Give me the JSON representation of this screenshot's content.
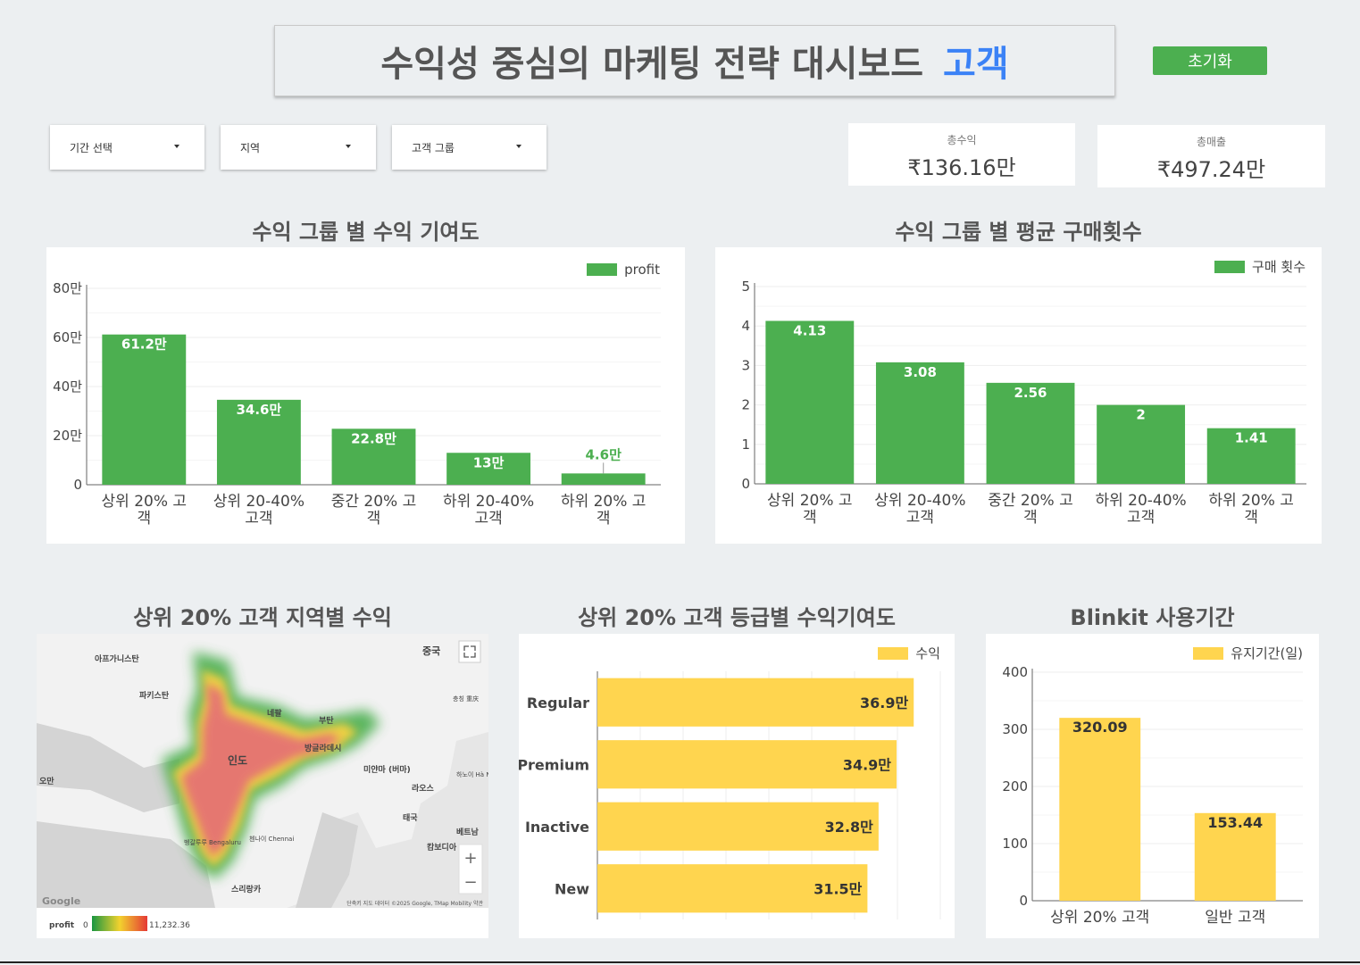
{
  "header": {
    "title": "수익성 중심의 마케팅 전략 대시보드",
    "title_accent": "고객",
    "reset_label": "초기화"
  },
  "filters": {
    "period": "기간 선택",
    "region": "지역",
    "customer_group": "고객 그룹"
  },
  "kpis": {
    "profit_label": "총수익",
    "profit_value": "₹136.16만",
    "sales_label": "총매출",
    "sales_value": "₹497.24만"
  },
  "colors": {
    "green": "#4caf50",
    "yellow": "#ffd54f",
    "accent": "#3b82f6"
  },
  "charts": {
    "profit_contrib": {
      "title": "수익 그룹 별 수익 기여도",
      "legend": "profit",
      "y_ticks": [
        "0",
        "20만",
        "40만",
        "60만",
        "80만"
      ],
      "categories": [
        [
          "상위 20% 고",
          "객"
        ],
        [
          "상위 20-40%",
          "고객"
        ],
        [
          "중간 20% 고",
          "객"
        ],
        [
          "하위 20-40%",
          "고객"
        ],
        [
          "하위 20% 고",
          "객"
        ]
      ],
      "labels": [
        "61.2만",
        "34.6만",
        "22.8만",
        "13만",
        "4.6만"
      ]
    },
    "avg_purchases": {
      "title": "수익 그룹 별 평균 구매횟수",
      "legend": "구매 횟수",
      "y_ticks": [
        "0",
        "1",
        "2",
        "3",
        "4",
        "5"
      ],
      "categories": [
        [
          "상위 20% 고",
          "객"
        ],
        [
          "상위 20-40%",
          "고객"
        ],
        [
          "중간 20% 고",
          "객"
        ],
        [
          "하위 20-40%",
          "고객"
        ],
        [
          "하위 20% 고",
          "객"
        ]
      ],
      "labels": [
        "4.13",
        "3.08",
        "2.56",
        "2",
        "1.41"
      ]
    },
    "grade_contrib": {
      "title": "상위 20% 고객 등급별 수익기여도",
      "legend": "수익",
      "categories": [
        "Regular",
        "Premium",
        "Inactive",
        "New"
      ],
      "labels": [
        "36.9만",
        "34.9만",
        "32.8만",
        "31.5만"
      ]
    },
    "usage_period": {
      "title": "Blinkit 사용기간",
      "legend": "유지기간(일)",
      "y_ticks": [
        "0",
        "100",
        "200",
        "300",
        "400"
      ],
      "categories": [
        "상위 20% 고객",
        "일반 고객"
      ],
      "labels": [
        "320.09",
        "153.44"
      ]
    }
  },
  "chart_data": [
    {
      "type": "bar",
      "title": "수익 그룹 별 수익 기여도",
      "categories": [
        "상위 20% 고객",
        "상위 20-40% 고객",
        "중간 20% 고객",
        "하위 20-40% 고객",
        "하위 20% 고객"
      ],
      "series": [
        {
          "name": "profit",
          "values": [
            612000,
            346000,
            228000,
            130000,
            46000
          ]
        }
      ],
      "ylim": [
        0,
        800000
      ],
      "legend": "top-right",
      "grid": true
    },
    {
      "type": "bar",
      "title": "수익 그룹 별 평균 구매횟수",
      "categories": [
        "상위 20% 고객",
        "상위 20-40% 고객",
        "중간 20% 고객",
        "하위 20-40% 고객",
        "하위 20% 고객"
      ],
      "series": [
        {
          "name": "구매 횟수",
          "values": [
            4.13,
            3.08,
            2.56,
            2,
            1.41
          ]
        }
      ],
      "ylim": [
        0,
        5
      ],
      "legend": "top-right",
      "grid": true
    },
    {
      "type": "bar",
      "orientation": "horizontal",
      "title": "상위 20% 고객 등급별 수익기여도",
      "categories": [
        "Regular",
        "Premium",
        "Inactive",
        "New"
      ],
      "series": [
        {
          "name": "수익",
          "values": [
            369000,
            349000,
            328000,
            315000
          ]
        }
      ],
      "xlim": [
        0,
        400000
      ],
      "legend": "top-right",
      "grid": true
    },
    {
      "type": "bar",
      "title": "Blinkit 사용기간",
      "categories": [
        "상위 20% 고객",
        "일반 고객"
      ],
      "series": [
        {
          "name": "유지기간(일)",
          "values": [
            320.09,
            153.44
          ]
        }
      ],
      "ylim": [
        0,
        400
      ],
      "legend": "top-right",
      "grid": true
    }
  ],
  "map": {
    "title": "상위 20% 고객 지역별 수익",
    "labels": {
      "afghanistan": "아프가니스탄",
      "pakistan": "파키스탄",
      "china": "중국",
      "nepal": "네팔",
      "bhutan": "부탄",
      "bangladesh": "방글라데시",
      "india": "인도",
      "myanmar": "미얀마\n(버마)",
      "laos": "라오스",
      "thailand": "태국",
      "vietnam": "베트남",
      "cambodia": "캄보디아",
      "oman": "오만",
      "srilanka": "스리랑카",
      "hanoi": "하노이\nHà Nội",
      "chennai": "첸나이\nChennai",
      "bengaluru": "벵갈루루\nBengaluru",
      "chongqing": "충칭\n重庆"
    },
    "google_logo": "Google",
    "attribution": "단축키  지도 데이터 ©2025 Google, TMap Mobility  약관",
    "legend_field": "profit",
    "legend_min": "0",
    "legend_max": "11,232.36",
    "zoom_in": "+",
    "zoom_out": "−"
  }
}
